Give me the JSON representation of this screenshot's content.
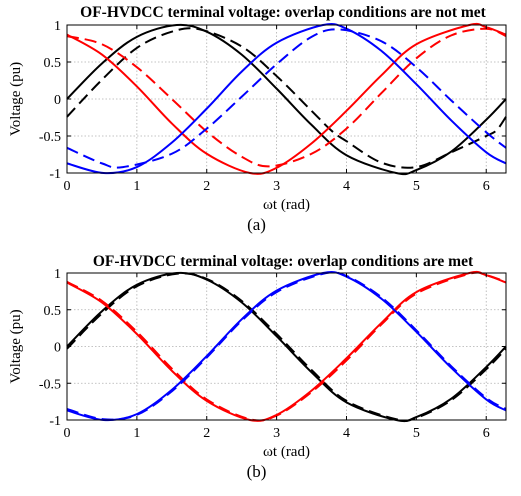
{
  "chart_data": [
    {
      "type": "line",
      "title": "OF-HVDCC terminal voltage: overlap conditions are not met",
      "xlabel": "ωt (rad)",
      "ylabel": "Voltage (pu)",
      "caption": "(a)",
      "xlim": [
        0,
        6.283
      ],
      "ylim": [
        -1,
        1
      ],
      "xticks": [
        "0",
        "1",
        "2",
        "3",
        "4",
        "5",
        "6"
      ],
      "yticks": [
        "-1",
        "-0.5",
        "0",
        "0.5",
        "1"
      ],
      "grid": true,
      "series": [
        {
          "color": "#000000",
          "style": "solid",
          "x": [
            0,
            0.5,
            1.0,
            1.571,
            2.0,
            2.5,
            3.0,
            3.5,
            4.0,
            4.712,
            5.0,
            5.5,
            6.0,
            6.283
          ],
          "y": [
            0.0,
            0.48,
            0.84,
            1.0,
            0.91,
            0.6,
            0.14,
            -0.35,
            -0.76,
            -1.0,
            -0.96,
            -0.71,
            -0.28,
            0.0
          ]
        },
        {
          "color": "#000000",
          "style": "dashed",
          "x": [
            0,
            0.5,
            1.0,
            1.5,
            1.9,
            2.5,
            3.0,
            3.5,
            3.8,
            4.0,
            4.5,
            5.0,
            5.5,
            6.0,
            6.15,
            6.283
          ],
          "y": [
            -0.24,
            0.26,
            0.69,
            0.91,
            0.94,
            0.71,
            0.31,
            -0.16,
            -0.44,
            -0.57,
            -0.86,
            -0.92,
            -0.72,
            -0.5,
            -0.42,
            -0.24
          ]
        },
        {
          "color": "#ff0000",
          "style": "solid",
          "x": [
            0,
            0.5,
            1.0,
            1.5,
            2.0,
            2.618,
            3.0,
            3.5,
            4.0,
            4.5,
            5.0,
            5.76,
            6.0,
            6.283
          ],
          "y": [
            0.87,
            0.6,
            0.17,
            -0.33,
            -0.74,
            -1.0,
            -0.93,
            -0.6,
            -0.16,
            0.32,
            0.74,
            1.0,
            0.97,
            0.87
          ]
        },
        {
          "color": "#ff0000",
          "style": "dashed",
          "x": [
            0,
            0.5,
            1.0,
            1.5,
            2.0,
            2.5,
            2.9,
            3.5,
            4.0,
            4.5,
            5.0,
            5.5,
            6.0,
            6.283
          ],
          "y": [
            0.85,
            0.74,
            0.43,
            0.0,
            -0.44,
            -0.78,
            -0.91,
            -0.74,
            -0.4,
            0.08,
            0.55,
            0.86,
            0.95,
            0.85
          ]
        },
        {
          "color": "#0000ff",
          "style": "solid",
          "x": [
            0,
            0.524,
            1.0,
            1.5,
            2.0,
            2.5,
            3.0,
            3.665,
            4.0,
            4.5,
            5.0,
            5.5,
            6.0,
            6.283
          ],
          "y": [
            -0.87,
            -1.0,
            -0.92,
            -0.59,
            -0.13,
            0.37,
            0.76,
            1.0,
            0.95,
            0.65,
            0.2,
            -0.29,
            -0.72,
            -0.87
          ]
        },
        {
          "color": "#0000ff",
          "style": "dashed",
          "x": [
            0,
            0.5,
            0.8,
            1.5,
            2.0,
            2.5,
            3.0,
            3.5,
            3.9,
            4.5,
            5.0,
            5.5,
            6.0,
            6.283
          ],
          "y": [
            -0.66,
            -0.87,
            -0.92,
            -0.74,
            -0.4,
            0.03,
            0.47,
            0.84,
            0.94,
            0.78,
            0.43,
            -0.02,
            -0.45,
            -0.66
          ]
        }
      ]
    },
    {
      "type": "line",
      "title": "OF-HVDCC terminal voltage: overlap conditions are met",
      "xlabel": "ωt (rad)",
      "ylabel": "Voltage (pu)",
      "caption": "(b)",
      "xlim": [
        0,
        6.283
      ],
      "ylim": [
        -1,
        1
      ],
      "xticks": [
        "0",
        "1",
        "2",
        "3",
        "4",
        "5",
        "6"
      ],
      "yticks": [
        "-1",
        "-0.5",
        "0",
        "0.5",
        "1"
      ],
      "grid": true,
      "series": [
        {
          "color": "#000000",
          "style": "solid",
          "x": [
            0,
            0.5,
            1.0,
            1.571,
            2.0,
            2.5,
            3.0,
            3.5,
            4.0,
            4.712,
            5.0,
            5.5,
            6.0,
            6.283
          ],
          "y": [
            0.0,
            0.48,
            0.84,
            1.0,
            0.91,
            0.6,
            0.14,
            -0.35,
            -0.76,
            -1.0,
            -0.96,
            -0.71,
            -0.28,
            0.0
          ]
        },
        {
          "color": "#000000",
          "style": "dashed",
          "x": [
            0,
            0.5,
            1.0,
            1.571,
            2.0,
            2.5,
            3.0,
            3.5,
            4.0,
            4.712,
            5.0,
            5.5,
            6.0,
            6.283
          ],
          "y": [
            -0.03,
            0.45,
            0.82,
            0.99,
            0.92,
            0.62,
            0.17,
            -0.32,
            -0.74,
            -0.99,
            -0.97,
            -0.73,
            -0.31,
            -0.03
          ]
        },
        {
          "color": "#ff0000",
          "style": "solid",
          "x": [
            0,
            0.5,
            1.0,
            1.5,
            2.0,
            2.618,
            3.0,
            3.5,
            4.0,
            4.5,
            5.0,
            5.76,
            6.0,
            6.283
          ],
          "y": [
            0.87,
            0.6,
            0.17,
            -0.33,
            -0.74,
            -1.0,
            -0.93,
            -0.6,
            -0.16,
            0.32,
            0.74,
            1.0,
            0.97,
            0.87
          ]
        },
        {
          "color": "#ff0000",
          "style": "dashed",
          "x": [
            0,
            0.5,
            1.0,
            1.5,
            2.0,
            2.618,
            3.0,
            3.5,
            4.0,
            4.5,
            5.0,
            5.76,
            6.0,
            6.283
          ],
          "y": [
            0.88,
            0.62,
            0.2,
            -0.3,
            -0.72,
            -0.99,
            -0.94,
            -0.62,
            -0.19,
            0.3,
            0.72,
            0.99,
            0.97,
            0.88
          ]
        },
        {
          "color": "#0000ff",
          "style": "solid",
          "x": [
            0,
            0.524,
            1.0,
            1.5,
            2.0,
            2.5,
            3.0,
            3.665,
            4.0,
            4.5,
            5.0,
            5.5,
            6.0,
            6.283
          ],
          "y": [
            -0.87,
            -1.0,
            -0.92,
            -0.59,
            -0.13,
            0.37,
            0.76,
            1.0,
            0.95,
            0.65,
            0.2,
            -0.29,
            -0.72,
            -0.87
          ]
        },
        {
          "color": "#0000ff",
          "style": "dashed",
          "x": [
            0,
            0.524,
            1.0,
            1.5,
            2.0,
            2.5,
            3.0,
            3.665,
            4.0,
            4.5,
            5.0,
            5.5,
            6.0,
            6.283
          ],
          "y": [
            -0.85,
            -0.99,
            -0.93,
            -0.61,
            -0.15,
            0.35,
            0.74,
            0.99,
            0.96,
            0.67,
            0.22,
            -0.27,
            -0.7,
            -0.85
          ]
        }
      ]
    }
  ]
}
